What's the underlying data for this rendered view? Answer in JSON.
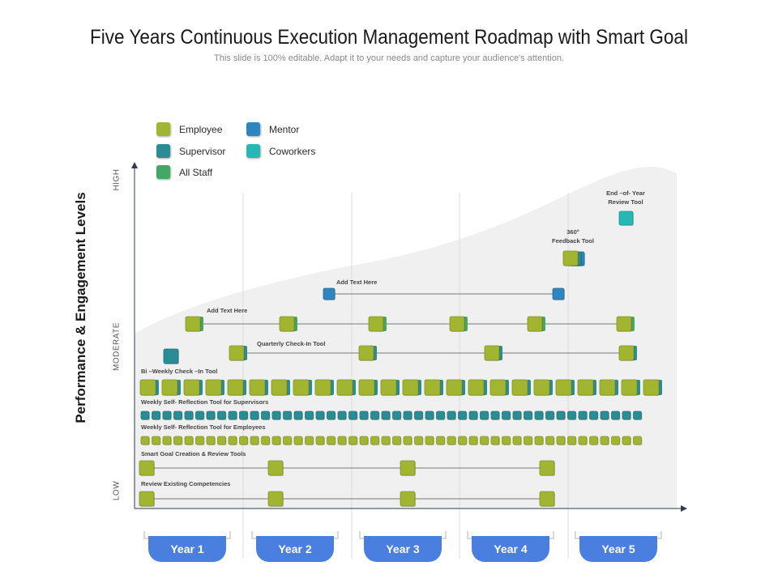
{
  "title": "Five Years Continuous Execution Management Roadmap with Smart Goal",
  "subtitle": "This slide is 100% editable. Adapt it to your needs and capture your audience's attention.",
  "y_axis_label": "Performance & Engagement Levels",
  "levels": {
    "high": "HIGH",
    "moderate": "MODERATE",
    "low": "LOW"
  },
  "legend": [
    {
      "label": "Employee",
      "color": "#a2b531"
    },
    {
      "label": "Mentor",
      "color": "#2e86c1"
    },
    {
      "label": "Supervisor",
      "color": "#2a8c94"
    },
    {
      "label": "Coworkers",
      "color": "#27b7b5"
    },
    {
      "label": "All Staff",
      "color": "#43a866"
    }
  ],
  "years": [
    "Year 1",
    "Year 2",
    "Year 3",
    "Year 4",
    "Year 5"
  ],
  "tools": {
    "end_of_year": "End –of- Year",
    "end_of_year_2": "Review Tool",
    "feedback_1": "360°",
    "feedback_2": "Feedback Tool",
    "add_text_1": "Add Text Here",
    "add_text_2": "Add Text Here",
    "quarterly": "Quarterly Check-In Tool",
    "biweekly": "Bi –Weekly Check –In Tool",
    "weekly_supervisors": "Weekly Self- Reflection Tool for Supervisors",
    "weekly_employees": "Weekly Self- Reflection Tool for Employees",
    "smart_goal": "Smart Goal Creation & Review Tools",
    "review_competencies": "Review Existing Competencies"
  }
}
